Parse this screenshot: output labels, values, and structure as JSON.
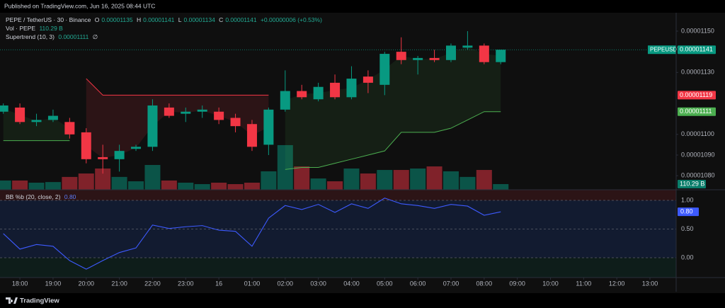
{
  "published": "Published on TradingView.com, Jun 16, 2025 08:44 UTC",
  "brand": "TradingView",
  "chart_data": [
    {
      "type": "candlestick",
      "title": "PEPE / TetherUS · 30 · Binance",
      "symbol": "PEPEUSDT",
      "ohlc_keys": [
        "O",
        "H",
        "L",
        "C"
      ],
      "change_label": "+0.00000006 (+0.53%)",
      "x": [
        0,
        1,
        2,
        3,
        4,
        5,
        6,
        7,
        8,
        9,
        10,
        11,
        12,
        13,
        14,
        15,
        16,
        17,
        18,
        19,
        20,
        21,
        22,
        23,
        24,
        25,
        26,
        27,
        28,
        29,
        30
      ],
      "open": [
        1.111e-05,
        1.113e-05,
        1.106e-05,
        1.107e-05,
        1.106e-05,
        1.101e-05,
        1.089e-05,
        1.088e-05,
        1.093e-05,
        1.094e-05,
        1.113e-05,
        1.11e-05,
        1.111e-05,
        1.111e-05,
        1.108e-05,
        1.105e-05,
        1.095e-05,
        1.112e-05,
        1.121e-05,
        1.117e-05,
        1.125e-05,
        1.118e-05,
        1.128e-05,
        1.124e-05,
        1.14e-05,
        1.136e-05,
        1.137e-05,
        1.136e-05,
        1.142e-05,
        1.143e-05,
        1.135e-05
      ],
      "high": [
        1.115e-05,
        1.115e-05,
        1.11e-05,
        1.112e-05,
        1.108e-05,
        1.103e-05,
        1.095e-05,
        1.095e-05,
        1.095e-05,
        1.117e-05,
        1.115e-05,
        1.113e-05,
        1.114e-05,
        1.113e-05,
        1.11e-05,
        1.107e-05,
        1.113e-05,
        1.131e-05,
        1.124e-05,
        1.125e-05,
        1.129e-05,
        1.133e-05,
        1.131e-05,
        1.14e-05,
        1.147e-05,
        1.138e-05,
        1.141e-05,
        1.144e-05,
        1.15e-05,
        1.144e-05,
        1.141e-05
      ],
      "low": [
        1.11e-05,
        1.105e-05,
        1.104e-05,
        1.106e-05,
        1.098e-05,
        1.086e-05,
        1.081e-05,
        1.082e-05,
        1.092e-05,
        1.092e-05,
        1.108e-05,
        1.106e-05,
        1.108e-05,
        1.105e-05,
        1.101e-05,
        1.092e-05,
        1.09e-05,
        1.111e-05,
        1.117e-05,
        1.116e-05,
        1.117e-05,
        1.117e-05,
        1.12e-05,
        1.119e-05,
        1.134e-05,
        1.129e-05,
        1.135e-05,
        1.135e-05,
        1.141e-05,
        1.134e-05,
        1.134e-05
      ],
      "close": [
        1.114e-05,
        1.106e-05,
        1.107e-05,
        1.109e-05,
        1.1e-05,
        1.088e-05,
        1.088e-05,
        1.092e-05,
        1.094e-05,
        1.114e-05,
        1.109e-05,
        1.111e-05,
        1.112e-05,
        1.107e-05,
        1.104e-05,
        1.094e-05,
        1.112e-05,
        1.121e-05,
        1.118e-05,
        1.123e-05,
        1.118e-05,
        1.127e-05,
        1.125e-05,
        1.139e-05,
        1.136e-05,
        1.137e-05,
        1.136e-05,
        1.143e-05,
        1.143e-05,
        1.135e-05,
        1.141e-05
      ],
      "up_color": "#089981",
      "down_color": "#f23645",
      "xlim": [
        -0.2,
        40.58
      ],
      "ylim": [
        1.0732e-05,
        1.1589e-05
      ],
      "yticks": [
        {
          "value": 1.08e-05,
          "label": "0.00001080"
        },
        {
          "value": 1.09e-05,
          "label": "0.00001090"
        },
        {
          "value": 1.1e-05,
          "label": "0.00001100"
        },
        {
          "value": 1.13e-05,
          "label": "0.00001130"
        },
        {
          "value": 1.15e-05,
          "label": "0.00001150"
        }
      ],
      "volume": {
        "name": "Vol · PEPE",
        "values": [
          180,
          180,
          138,
          150,
          250,
          317,
          414,
          250,
          165,
          483,
          180,
          138,
          110,
          138,
          110,
          138,
          359,
          870,
          455,
          220,
          165,
          414,
          317,
          386,
          386,
          414,
          455,
          359,
          250,
          386,
          110.29
        ],
        "value_labels": [
          null,
          null,
          null,
          null,
          null,
          null,
          null,
          null,
          null,
          null,
          null,
          null,
          null,
          null,
          null,
          null,
          null,
          null,
          null,
          null,
          null,
          null,
          null,
          null,
          null,
          null,
          null,
          null,
          null,
          null,
          "110.29 B"
        ],
        "ylim": [
          0,
          3450
        ]
      },
      "supertrend": {
        "name": "Supertrend (10, 3)",
        "empty_label": "∅",
        "up_color": "#4caf50",
        "down_color": "#f23645",
        "up_values": [
          1.097e-05,
          1.097e-05,
          1.097e-05,
          1.097e-05,
          1.097e-05,
          null,
          null,
          null,
          null,
          null,
          null,
          null,
          null,
          null,
          null,
          null,
          null,
          1.083e-05,
          1.084e-05,
          1.084e-05,
          1.086e-05,
          1.088e-05,
          1.09e-05,
          1.092e-05,
          1.101e-05,
          1.101e-05,
          1.101e-05,
          1.103e-05,
          1.107e-05,
          1.111e-05,
          1.111e-05
        ],
        "down_values": [
          null,
          null,
          null,
          null,
          null,
          1.127e-05,
          1.119e-05,
          1.119e-05,
          1.119e-05,
          1.119e-05,
          1.119e-05,
          1.119e-05,
          1.119e-05,
          1.119e-05,
          1.119e-05,
          1.119e-05,
          1.119e-05,
          null,
          null,
          null,
          null,
          null,
          null,
          null,
          null,
          null,
          null,
          null,
          null,
          null,
          null
        ]
      }
    },
    {
      "type": "line",
      "title": "BB %b (20, close, 2)",
      "x": [
        0,
        1,
        2,
        3,
        4,
        5,
        6,
        7,
        8,
        9,
        10,
        11,
        12,
        13,
        14,
        15,
        16,
        17,
        18,
        19,
        20,
        21,
        22,
        23,
        24,
        25,
        26,
        27,
        28,
        29,
        30
      ],
      "values": [
        0.42,
        0.15,
        0.23,
        0.2,
        -0.05,
        -0.2,
        -0.05,
        0.09,
        0.17,
        0.57,
        0.51,
        0.54,
        0.56,
        0.48,
        0.46,
        0.2,
        0.69,
        0.91,
        0.84,
        0.93,
        0.79,
        0.94,
        0.86,
        1.04,
        0.94,
        0.91,
        0.86,
        0.93,
        0.9,
        0.74,
        0.8
      ],
      "value_labels": [
        null,
        null,
        null,
        null,
        null,
        null,
        null,
        null,
        null,
        null,
        null,
        null,
        null,
        null,
        null,
        null,
        null,
        null,
        null,
        null,
        null,
        null,
        null,
        null,
        null,
        null,
        null,
        null,
        null,
        null,
        "0.80"
      ],
      "color": "#3d5afe",
      "xlim": [
        -0.2,
        40.58
      ],
      "ylim": [
        -0.346,
        1.185
      ],
      "yticks": [
        {
          "value": 0,
          "label": "0.00"
        },
        {
          "value": 0.5,
          "label": "0.50"
        },
        {
          "value": 1,
          "label": "1.00"
        }
      ],
      "xticks": [
        {
          "value": 1,
          "label": "18:00"
        },
        {
          "value": 3,
          "label": "19:00"
        },
        {
          "value": 5,
          "label": "20:00"
        },
        {
          "value": 7,
          "label": "21:00"
        },
        {
          "value": 9,
          "label": "22:00"
        },
        {
          "value": 11,
          "label": "23:00"
        },
        {
          "value": 13,
          "label": "16"
        },
        {
          "value": 15,
          "label": "01:00"
        },
        {
          "value": 17,
          "label": "02:00"
        },
        {
          "value": 19,
          "label": "03:00"
        },
        {
          "value": 21,
          "label": "04:00"
        },
        {
          "value": 23,
          "label": "05:00"
        },
        {
          "value": 25,
          "label": "06:00"
        },
        {
          "value": 27,
          "label": "07:00"
        },
        {
          "value": 29,
          "label": "08:00"
        },
        {
          "value": 31,
          "label": "09:00"
        },
        {
          "value": 33,
          "label": "10:00"
        },
        {
          "value": 35,
          "label": "11:00"
        },
        {
          "value": 37,
          "label": "12:00"
        },
        {
          "value": 39,
          "label": "13:00"
        }
      ]
    }
  ]
}
